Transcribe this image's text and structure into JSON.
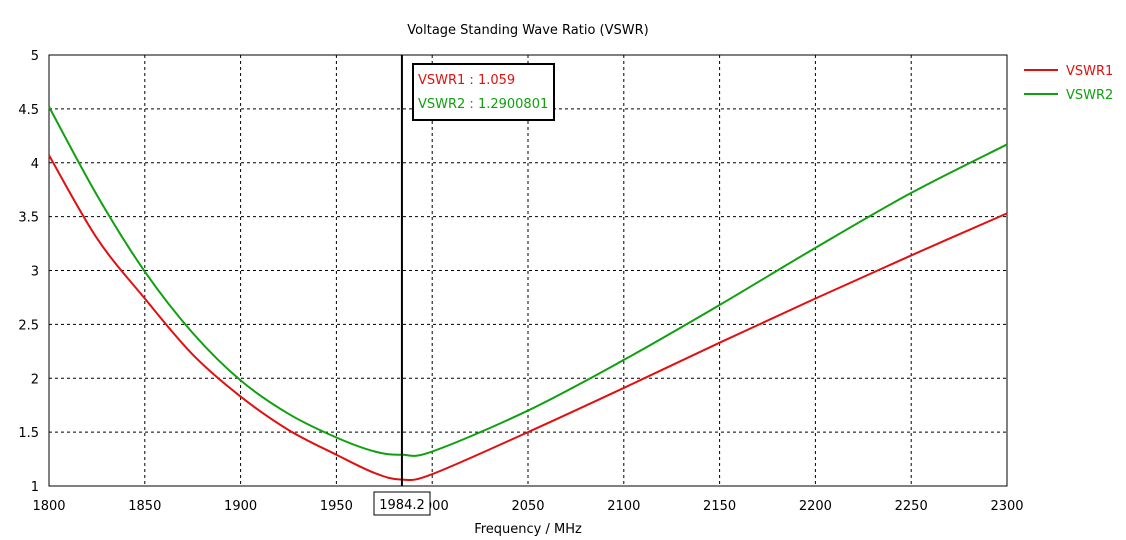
{
  "chart_data": {
    "type": "line",
    "title": "Voltage Standing Wave Ratio (VSWR)",
    "xlabel": "Frequency / MHz",
    "ylabel": "",
    "xlim": [
      1800,
      2300
    ],
    "ylim": [
      1,
      5
    ],
    "xticks": [
      "1800",
      "1850",
      "1900",
      "1950",
      "2000",
      "2050",
      "2100",
      "2150",
      "2200",
      "2250",
      "2300"
    ],
    "yticks": [
      "1",
      "1.5",
      "2",
      "2.5",
      "3",
      "3.5",
      "4",
      "4.5",
      "5"
    ],
    "grid": true,
    "legend_position": "top-right",
    "x": [
      1800,
      1825,
      1850,
      1875,
      1900,
      1925,
      1950,
      1970,
      1984.2,
      2000,
      2050,
      2100,
      2150,
      2200,
      2250,
      2300
    ],
    "series": [
      {
        "name": "VSWR1",
        "color": "#e01010",
        "values": [
          4.07,
          3.3,
          2.74,
          2.22,
          1.83,
          1.52,
          1.29,
          1.12,
          1.059,
          1.11,
          1.5,
          1.91,
          2.33,
          2.74,
          3.14,
          3.53
        ]
      },
      {
        "name": "VSWR2",
        "color": "#10a010",
        "values": [
          4.52,
          3.7,
          2.99,
          2.42,
          1.98,
          1.67,
          1.45,
          1.32,
          1.29,
          1.32,
          1.7,
          2.17,
          2.68,
          3.21,
          3.72,
          4.17
        ]
      }
    ],
    "marker": {
      "x": 1984.2,
      "x_label": "1984.2",
      "readouts": [
        "VSWR1 : 1.059",
        "VSWR2 : 1.2900801"
      ]
    }
  }
}
